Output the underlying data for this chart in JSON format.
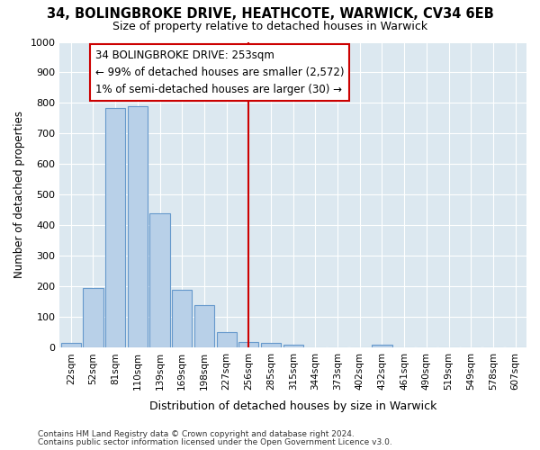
{
  "title_line1": "34, BOLINGBROKE DRIVE, HEATHCOTE, WARWICK, CV34 6EB",
  "title_line2": "Size of property relative to detached houses in Warwick",
  "xlabel": "Distribution of detached houses by size in Warwick",
  "ylabel": "Number of detached properties",
  "categories": [
    "22sqm",
    "52sqm",
    "81sqm",
    "110sqm",
    "139sqm",
    "169sqm",
    "198sqm",
    "227sqm",
    "256sqm",
    "285sqm",
    "315sqm",
    "344sqm",
    "373sqm",
    "402sqm",
    "432sqm",
    "461sqm",
    "490sqm",
    "519sqm",
    "549sqm",
    "578sqm",
    "607sqm"
  ],
  "values": [
    15,
    195,
    785,
    790,
    440,
    190,
    140,
    50,
    20,
    15,
    10,
    0,
    0,
    0,
    10,
    0,
    0,
    0,
    0,
    0,
    0
  ],
  "bar_color": "#b8d0e8",
  "bar_edge_color": "#6699cc",
  "background_color": "#dce8f0",
  "grid_color": "#ffffff",
  "fig_color": "#ffffff",
  "ylim": [
    0,
    1000
  ],
  "yticks": [
    0,
    100,
    200,
    300,
    400,
    500,
    600,
    700,
    800,
    900,
    1000
  ],
  "vline_x_index": 8,
  "vline_color": "#cc0000",
  "annotation_text": "34 BOLINGBROKE DRIVE: 253sqm\n← 99% of detached houses are smaller (2,572)\n1% of semi-detached houses are larger (30) →",
  "annotation_box_color": "#ffffff",
  "annotation_box_edge": "#cc0000",
  "footnote1": "Contains HM Land Registry data © Crown copyright and database right 2024.",
  "footnote2": "Contains public sector information licensed under the Open Government Licence v3.0."
}
